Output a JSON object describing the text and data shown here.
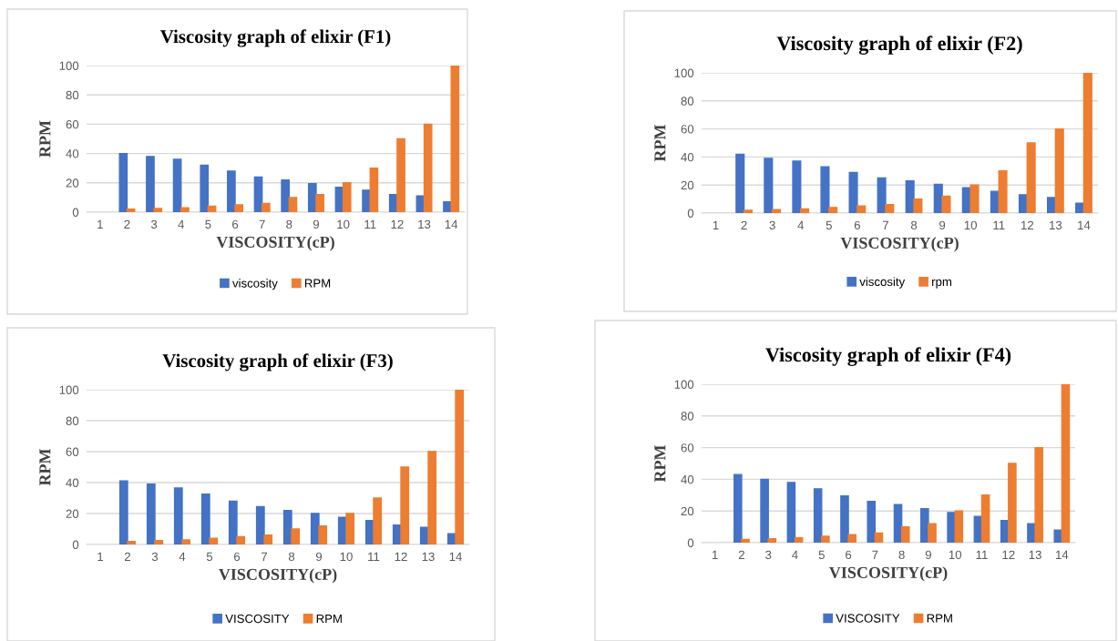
{
  "chart_data": [
    {
      "type": "bar",
      "title": "Viscosity graph of elixir (F1)",
      "xlabel": "VISCOSITY(cP)",
      "ylabel": "RPM",
      "categories": [
        "1",
        "2",
        "3",
        "4",
        "5",
        "6",
        "7",
        "8",
        "9",
        "10",
        "11",
        "12",
        "13",
        "14"
      ],
      "ylim": [
        0,
        100
      ],
      "yticks": [
        0,
        20,
        40,
        60,
        80,
        100
      ],
      "grid": "y",
      "legend": "bottom",
      "series": [
        {
          "name": "viscosity",
          "color": "#4472c4",
          "values": [
            null,
            40,
            38,
            36,
            32,
            28,
            24,
            22,
            19.5,
            17,
            15,
            12,
            11,
            7
          ]
        },
        {
          "name": "RPM",
          "color": "#ed7d31",
          "values": [
            null,
            2,
            2.5,
            3,
            4,
            5,
            6,
            10,
            12,
            20,
            30,
            50,
            60,
            100
          ]
        }
      ]
    },
    {
      "type": "bar",
      "title": "Viscosity graph of elixir (F2)",
      "xlabel": "VISCOSITY(cP)",
      "ylabel": "RPM",
      "categories": [
        "1",
        "2",
        "3",
        "4",
        "5",
        "6",
        "7",
        "8",
        "9",
        "10",
        "11",
        "12",
        "13",
        "14"
      ],
      "ylim": [
        0,
        100
      ],
      "yticks": [
        0,
        20,
        40,
        60,
        80,
        100
      ],
      "grid": "y",
      "legend": "bottom",
      "series": [
        {
          "name": "viscosity",
          "color": "#4472c4",
          "values": [
            null,
            42,
            39,
            37,
            33,
            29,
            25,
            23,
            20.5,
            18,
            15.5,
            13,
            11,
            7
          ]
        },
        {
          "name": "rpm",
          "color": "#ed7d31",
          "values": [
            null,
            2,
            2.5,
            3,
            4,
            5,
            6,
            10,
            12,
            20,
            30,
            50,
            60,
            100
          ]
        }
      ]
    },
    {
      "type": "bar",
      "title": "Viscosity graph of elixir (F3)",
      "xlabel": "VISCOSITY(cP)",
      "ylabel": "RPM",
      "categories": [
        "1",
        "2",
        "3",
        "4",
        "5",
        "6",
        "7",
        "8",
        "9",
        "10",
        "11",
        "12",
        "13",
        "14"
      ],
      "ylim": [
        0,
        100
      ],
      "yticks": [
        0,
        20,
        40,
        60,
        80,
        100
      ],
      "grid": "y",
      "legend": "bottom",
      "series": [
        {
          "name": "VISCOSITY",
          "color": "#4472c4",
          "values": [
            null,
            41,
            39,
            36.5,
            32.5,
            28,
            24.5,
            22,
            20,
            17.5,
            15.5,
            12.5,
            11,
            7
          ]
        },
        {
          "name": "RPM",
          "color": "#ed7d31",
          "values": [
            null,
            2,
            2.5,
            3,
            4,
            5,
            6,
            10,
            12,
            20,
            30,
            50,
            60,
            100
          ]
        }
      ]
    },
    {
      "type": "bar",
      "title": "Viscosity graph of elixir (F4)",
      "xlabel": "VISCOSITY(cP)",
      "ylabel": "RPM",
      "categories": [
        "1",
        "2",
        "3",
        "4",
        "5",
        "6",
        "7",
        "8",
        "9",
        "10",
        "11",
        "12",
        "13",
        "14"
      ],
      "ylim": [
        0,
        100
      ],
      "yticks": [
        0,
        20,
        40,
        60,
        80,
        100
      ],
      "grid": "y",
      "legend": "bottom",
      "series": [
        {
          "name": "VISCOSITY",
          "color": "#4472c4",
          "values": [
            null,
            43,
            40,
            38,
            34,
            29.5,
            26,
            24,
            21.5,
            19,
            16.5,
            14,
            12,
            8
          ]
        },
        {
          "name": "RPM",
          "color": "#ed7d31",
          "values": [
            null,
            2,
            2.5,
            3,
            4,
            5,
            6,
            10,
            12,
            20,
            30,
            50,
            60,
            100
          ]
        }
      ]
    }
  ]
}
